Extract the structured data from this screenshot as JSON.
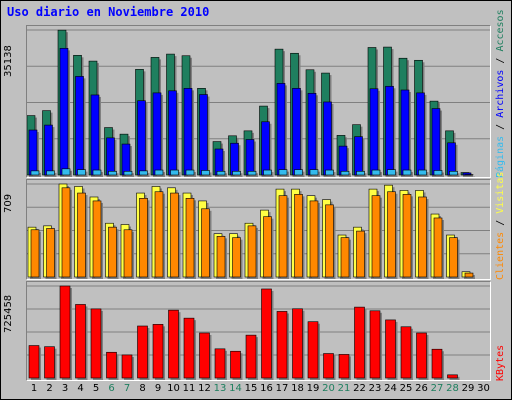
{
  "title": "Uso diario en Noviembre 2010",
  "colors": {
    "accesos": "#1f7f5f",
    "archivos": "#0000ff",
    "paginas": "#33bbee",
    "visitas": "#ffff44",
    "clientes": "#ff8800",
    "kbytes": "#ff0000",
    "weekend_label": "#1f7f5f",
    "gridline": "#808080"
  },
  "legends": {
    "hits": [
      {
        "text": "Páginas",
        "color": "#33bbee"
      },
      {
        "text": " / ",
        "color": "#000000"
      },
      {
        "text": "Archivos",
        "color": "#0000ff"
      },
      {
        "text": " / ",
        "color": "#000000"
      },
      {
        "text": "Accesos",
        "color": "#1f7f5f"
      }
    ],
    "visits": [
      {
        "text": "Clientes",
        "color": "#ff8800"
      },
      {
        "text": " / ",
        "color": "#000000"
      },
      {
        "text": "Visitas",
        "color": "#ffff44"
      }
    ],
    "kbytes": [
      {
        "text": "KBytes",
        "color": "#ff0000"
      }
    ]
  },
  "chart_data": [
    {
      "type": "bar",
      "panel": "hits",
      "ymax_label": "35138",
      "ylim": [
        0,
        35138
      ],
      "categories": [
        "1",
        "2",
        "3",
        "4",
        "5",
        "6",
        "7",
        "8",
        "9",
        "10",
        "11",
        "12",
        "13",
        "14",
        "15",
        "16",
        "17",
        "18",
        "19",
        "20",
        "21",
        "22",
        "23",
        "24",
        "25",
        "26",
        "27",
        "28",
        "29",
        "30"
      ],
      "weekend_days": [
        "6",
        "7",
        "13",
        "14",
        "20",
        "21",
        "27",
        "28"
      ],
      "grid": true,
      "series": [
        {
          "name": "Accesos",
          "values": [
            14400,
            15600,
            35100,
            29000,
            27600,
            11500,
            9900,
            25600,
            28500,
            29300,
            28900,
            21000,
            8100,
            9500,
            10700,
            16700,
            30500,
            29500,
            25500,
            24700,
            9600,
            12200,
            30900,
            31000,
            28300,
            27800,
            17900,
            10700,
            600,
            0
          ]
        },
        {
          "name": "Archivos",
          "values": [
            10900,
            12100,
            30700,
            23900,
            19400,
            9000,
            7500,
            18000,
            19900,
            20400,
            21000,
            19500,
            6300,
            7700,
            8600,
            12900,
            22200,
            21000,
            19800,
            17700,
            7000,
            9300,
            20900,
            21500,
            20600,
            19900,
            16100,
            7800,
            500,
            0
          ]
        },
        {
          "name": "Páginas",
          "values": [
            1000,
            1000,
            1500,
            1300,
            1200,
            900,
            900,
            1000,
            1200,
            1200,
            1200,
            1100,
            900,
            900,
            900,
            1200,
            1300,
            1300,
            1300,
            1200,
            900,
            900,
            1200,
            1300,
            1200,
            1200,
            1100,
            900,
            100,
            0
          ]
        }
      ]
    },
    {
      "type": "bar",
      "panel": "visits",
      "ymax_label": "709",
      "ylim": [
        0,
        709
      ],
      "categories": [
        "1",
        "2",
        "3",
        "4",
        "5",
        "6",
        "7",
        "8",
        "9",
        "10",
        "11",
        "12",
        "13",
        "14",
        "15",
        "16",
        "17",
        "18",
        "19",
        "20",
        "21",
        "22",
        "23",
        "24",
        "25",
        "26",
        "27",
        "28",
        "29",
        "30"
      ],
      "grid": true,
      "series": [
        {
          "name": "Visitas",
          "values": [
            380,
            390,
            709,
            690,
            610,
            410,
            400,
            640,
            690,
            680,
            640,
            580,
            330,
            330,
            410,
            510,
            670,
            670,
            620,
            590,
            320,
            380,
            670,
            700,
            660,
            660,
            480,
            320,
            40,
            0
          ]
        },
        {
          "name": "Clientes",
          "values": [
            360,
            370,
            680,
            640,
            580,
            380,
            360,
            600,
            650,
            640,
            600,
            520,
            310,
            300,
            390,
            460,
            620,
            630,
            580,
            550,
            300,
            350,
            620,
            650,
            630,
            610,
            450,
            300,
            30,
            0
          ]
        }
      ]
    },
    {
      "type": "bar",
      "panel": "kbytes",
      "ymax_label": "725458",
      "ylim": [
        0,
        725458
      ],
      "categories": [
        "1",
        "2",
        "3",
        "4",
        "5",
        "6",
        "7",
        "8",
        "9",
        "10",
        "11",
        "12",
        "13",
        "14",
        "15",
        "16",
        "17",
        "18",
        "19",
        "20",
        "21",
        "22",
        "23",
        "24",
        "25",
        "26",
        "27",
        "28",
        "29",
        "30"
      ],
      "grid": true,
      "series": [
        {
          "name": "KBytes",
          "values": [
            256000,
            247000,
            725458,
            580000,
            545000,
            203000,
            182000,
            410000,
            423000,
            535000,
            472000,
            355000,
            230000,
            211000,
            338000,
            702000,
            525000,
            546000,
            444000,
            193000,
            186000,
            559000,
            530000,
            458000,
            404000,
            355000,
            227000,
            25000,
            0,
            0
          ]
        }
      ]
    }
  ]
}
